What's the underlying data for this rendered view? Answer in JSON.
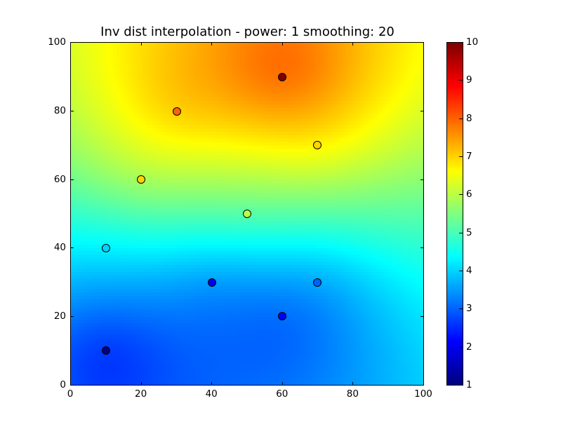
{
  "chart_data": {
    "type": "heatmap",
    "title": "Inv dist interpolation - power: 1 smoothing: 20",
    "xlabel": "",
    "ylabel": "",
    "xlim": [
      0,
      100
    ],
    "ylim": [
      0,
      100
    ],
    "x_ticks": [
      "0",
      "20",
      "40",
      "60",
      "80",
      "100"
    ],
    "y_ticks": [
      "0",
      "20",
      "40",
      "60",
      "80",
      "100"
    ],
    "grid": false,
    "colormap": "jet",
    "colorbar": {
      "range": [
        1,
        10
      ],
      "ticks": [
        "1",
        "2",
        "3",
        "4",
        "5",
        "6",
        "7",
        "8",
        "9",
        "10"
      ]
    },
    "interpolation": {
      "method": "inverse distance",
      "power": 1,
      "smoothing": 20
    },
    "points": [
      {
        "x": 10,
        "y": 10,
        "value": 1.0
      },
      {
        "x": 10,
        "y": 40,
        "value": 4.0
      },
      {
        "x": 20,
        "y": 60,
        "value": 7.0
      },
      {
        "x": 30,
        "y": 80,
        "value": 8.0
      },
      {
        "x": 40,
        "y": 30,
        "value": 2.0
      },
      {
        "x": 50,
        "y": 50,
        "value": 6.0
      },
      {
        "x": 60,
        "y": 20,
        "value": 2.0
      },
      {
        "x": 60,
        "y": 90,
        "value": 10.0
      },
      {
        "x": 70,
        "y": 30,
        "value": 3.0
      },
      {
        "x": 70,
        "y": 70,
        "value": 7.0
      }
    ]
  }
}
